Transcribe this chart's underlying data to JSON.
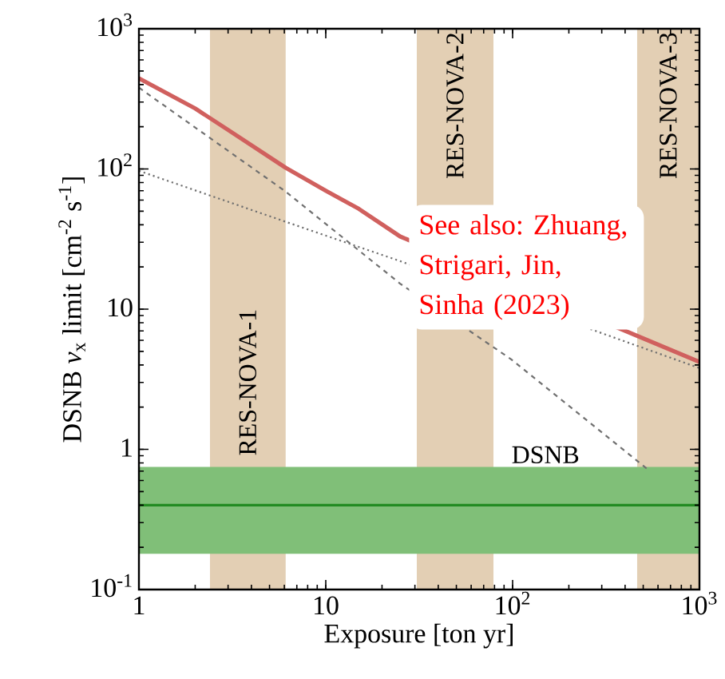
{
  "chart_data": {
    "type": "line",
    "xlabel": "Exposure [ton yr]",
    "ylabel": "DSNB *ν*$_{x}$ limit [cm$^{-2}$ s$^{-1}$]",
    "log": "xy",
    "grid": false,
    "marker": "none",
    "xlim": [
      1,
      1000
    ],
    "ylim": [
      0.1,
      1000
    ],
    "xticks": [
      1,
      10,
      {
        "value": 100,
        "label": "10$^{2}$"
      },
      {
        "value": 1000,
        "label": "10$^{3}$"
      }
    ],
    "yticks": [
      {
        "value": 0.1,
        "label": "10$^{-1}$"
      },
      1,
      10,
      {
        "value": 100,
        "label": "10$^{2}$"
      },
      {
        "value": 1000,
        "label": "10$^{3}$"
      }
    ],
    "series": [
      {
        "color": "#d0605e",
        "line_style": "solid",
        "x": [
          1,
          2,
          3,
          6.1,
          10,
          15,
          25,
          1000
        ],
        "values": [
          443,
          270,
          190,
          102,
          70,
          52,
          33,
          4.2
        ]
      },
      {
        "color": "#707070",
        "line_style": "dashed",
        "x": [
          1,
          6.1,
          25,
          98,
          543
        ],
        "values": [
          380,
          69,
          15.2,
          4.4,
          0.7
        ]
      },
      {
        "color": "#707070",
        "line_style": "dotted",
        "x": [
          1,
          6.1,
          25,
          1000
        ],
        "values": [
          97,
          42,
          22,
          3.8
        ]
      }
    ],
    "bands": [
      {
        "axis": "x",
        "from": 2.4,
        "to": 6.1,
        "label": "RES-NOVA-1",
        "color": "#e3cfb4"
      },
      {
        "axis": "x",
        "from": 30.7,
        "to": 79,
        "label": "RES-NOVA-2",
        "color": "#e3cfb4"
      },
      {
        "axis": "x",
        "from": 464,
        "to": 1000,
        "label": "RES-NOVA-3",
        "color": "#e3cfb4"
      },
      {
        "axis": "y",
        "from": 0.18,
        "to": 0.75,
        "label": "DSNB",
        "color": "#80bf78"
      }
    ],
    "ref_lines": [
      {
        "axis": "y",
        "value": 0.4,
        "color": "#228b22",
        "line_style": "solid"
      }
    ],
    "annotations": [
      "See also: Zhuang, Strigari, Jin, Sinha (2023)"
    ]
  }
}
